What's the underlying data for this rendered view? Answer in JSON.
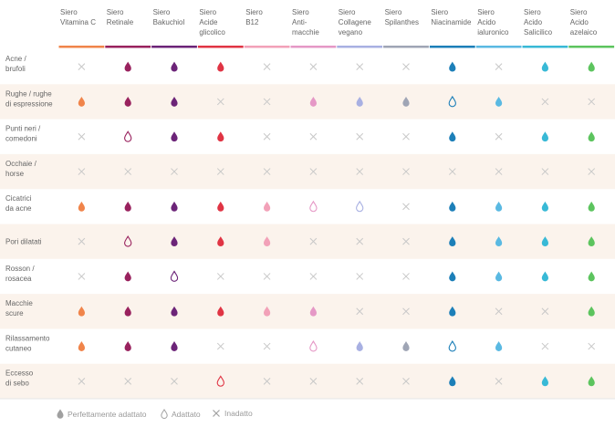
{
  "chart_data": {
    "type": "table",
    "columns": [
      {
        "label": [
          "Siero",
          "Vitamina C"
        ],
        "color": "#f0844a"
      },
      {
        "label": [
          "Siero",
          "Retinale"
        ],
        "color": "#99225e"
      },
      {
        "label": [
          "Siero",
          "Bakuchiol"
        ],
        "color": "#6c2478"
      },
      {
        "label": [
          "Siero",
          "Acide",
          "glicolico"
        ],
        "color": "#e03444"
      },
      {
        "label": [
          "Siero",
          "B12"
        ],
        "color": "#f2a1b8"
      },
      {
        "label": [
          "Siero",
          "Anti-",
          "macchie"
        ],
        "color": "#e598c6"
      },
      {
        "label": [
          "Siero",
          "Collagene",
          "vegano"
        ],
        "color": "#a8b0e2"
      },
      {
        "label": [
          "Siero",
          "Spilanthes"
        ],
        "color": "#9fa5b5"
      },
      {
        "label": [
          "Siero",
          "Niacinamide"
        ],
        "color": "#1c7fb8"
      },
      {
        "label": [
          "Siero",
          "Acido",
          "ialuronico"
        ],
        "color": "#5ab9e2"
      },
      {
        "label": [
          "Siero",
          "Acido",
          "Salicilico"
        ],
        "color": "#38b9d6"
      },
      {
        "label": [
          "Siero",
          "Acido",
          "azelaico"
        ],
        "color": "#5cc45e"
      }
    ],
    "rows": [
      {
        "label": [
          "Acne /",
          "brufoli"
        ],
        "values": [
          "x",
          "full",
          "full",
          "full",
          "x",
          "x",
          "x",
          "x",
          "full",
          "x",
          "full",
          "full"
        ]
      },
      {
        "label": [
          "Rughe / rughe",
          "di espressione"
        ],
        "values": [
          "full",
          "full",
          "full",
          "x",
          "x",
          "full",
          "full",
          "full",
          "outline",
          "full",
          "x",
          "x"
        ]
      },
      {
        "label": [
          "Punti neri /",
          "comedoni"
        ],
        "values": [
          "x",
          "outline",
          "full",
          "full",
          "x",
          "x",
          "x",
          "x",
          "full",
          "x",
          "full",
          "full"
        ]
      },
      {
        "label": [
          "Occhaie /",
          "horse"
        ],
        "values": [
          "x",
          "x",
          "x",
          "x",
          "x",
          "x",
          "x",
          "x",
          "x",
          "x",
          "x",
          "x"
        ]
      },
      {
        "label": [
          "Cicatrici",
          "da acne"
        ],
        "values": [
          "full",
          "full",
          "full",
          "full",
          "full",
          "outline",
          "outline",
          "x",
          "full",
          "full",
          "full",
          "full"
        ]
      },
      {
        "label": [
          "Pori dilatati"
        ],
        "values": [
          "x",
          "outline",
          "full",
          "full",
          "full",
          "x",
          "x",
          "x",
          "full",
          "full",
          "full",
          "full"
        ]
      },
      {
        "label": [
          "Rosson /",
          "rosacea"
        ],
        "values": [
          "x",
          "full",
          "outline",
          "x",
          "x",
          "x",
          "x",
          "x",
          "full",
          "full",
          "full",
          "full"
        ]
      },
      {
        "label": [
          "Macchie",
          "scure"
        ],
        "values": [
          "full",
          "full",
          "full",
          "full",
          "full",
          "full",
          "x",
          "x",
          "full",
          "x",
          "x",
          "full"
        ]
      },
      {
        "label": [
          "Rilassamento",
          "cutaneo"
        ],
        "values": [
          "full",
          "full",
          "full",
          "x",
          "x",
          "outline",
          "full",
          "full",
          "outline",
          "full",
          "x",
          "x"
        ]
      },
      {
        "label": [
          "Eccesso",
          "di sebo"
        ],
        "values": [
          "x",
          "x",
          "x",
          "outline",
          "x",
          "x",
          "x",
          "x",
          "full",
          "x",
          "full",
          "full"
        ]
      }
    ],
    "stripe_color": "#fbf3ec",
    "neutral_color": "#c8c8c8"
  },
  "legend": {
    "full": "Perfettamente adattato",
    "outline": "Adattato",
    "none": "Inadatto",
    "icon_color": "#a0a0a0"
  }
}
